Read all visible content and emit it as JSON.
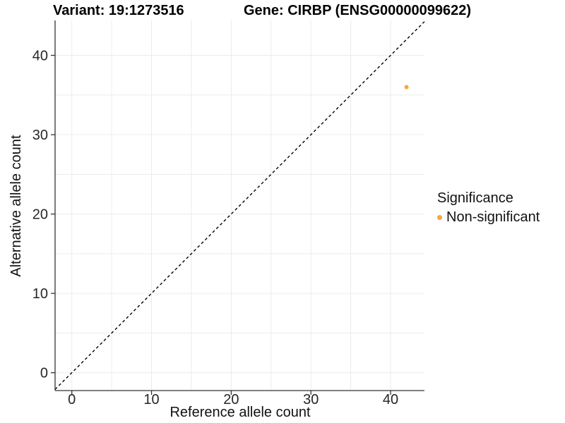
{
  "header": {
    "variant_title": "Variant: 19:1273516",
    "gene_title": "Gene: CIRBP (ENSG00000099622)"
  },
  "chart_data": {
    "type": "scatter",
    "xlabel": "Reference allele count",
    "ylabel": "Alternative allele count",
    "xlim": [
      -2.1,
      44.25
    ],
    "ylim": [
      -2.25,
      44.4
    ],
    "xticks": [
      0,
      10,
      20,
      30,
      40
    ],
    "yticks": [
      0,
      10,
      20,
      30,
      40
    ],
    "grid": true,
    "grid_step": 5,
    "legend_position": "right",
    "identity_line": {
      "style": "dashed",
      "slope": 1,
      "intercept": 0,
      "color": "#000000"
    },
    "series": [
      {
        "name": "Non-significant",
        "color": "#FAA43A",
        "points": [
          {
            "x": 42,
            "y": 36
          }
        ]
      }
    ]
  },
  "legend": {
    "title": "Significance",
    "items": [
      {
        "label": "Non-significant",
        "color": "#FAA43A"
      }
    ]
  },
  "colors": {
    "axis_line": "#333333",
    "tick_label": "#262626",
    "gridline": "#ECECEC",
    "background": "#FFFFFF"
  }
}
